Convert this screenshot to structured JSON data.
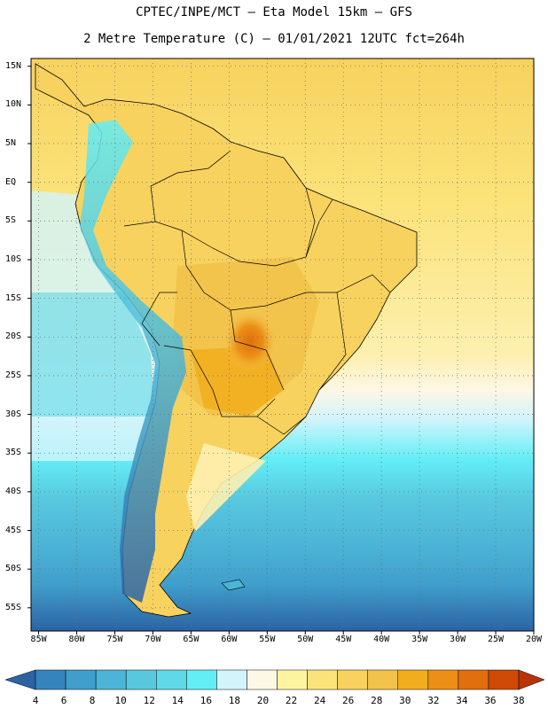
{
  "title_line1": "CPTEC/INPE/MCT –  Eta Model 15km – GFS",
  "title_line2": "2 Metre Temperature (C) – 01/01/2021 12UTC fct=264h",
  "lat_labels": [
    "15N",
    "10N",
    "5N",
    "EQ",
    "5S",
    "10S",
    "15S",
    "20S",
    "25S",
    "30S",
    "35S",
    "40S",
    "45S",
    "50S",
    "55S"
  ],
  "lon_labels": [
    "85W",
    "80W",
    "75W",
    "70W",
    "65W",
    "60W",
    "55W",
    "50W",
    "45W",
    "40W",
    "35W",
    "30W",
    "25W",
    "20W"
  ],
  "colorbar": {
    "labels": [
      "4",
      "6",
      "8",
      "10",
      "12",
      "14",
      "16",
      "18",
      "20",
      "22",
      "24",
      "26",
      "28",
      "30",
      "32",
      "34",
      "36",
      "38"
    ],
    "colors": [
      "#2c63a4",
      "#3584bd",
      "#3f9ecb",
      "#4cb4d6",
      "#58c8df",
      "#5fd9e8",
      "#63eef6",
      "#d2f4fb",
      "#fdf7e6",
      "#fef4a0",
      "#fbe37a",
      "#f7d25e",
      "#f2c24a",
      "#f1ad1c",
      "#eb8f16",
      "#e16f0d",
      "#cf4a06",
      "#b83408"
    ]
  },
  "map": {
    "domain": {
      "lon_min": -86,
      "lon_max": -20,
      "lat_min": -58,
      "lat_max": 16
    },
    "ocean_colors": {
      "north": "#f7d25e",
      "south_deep": "#2c63a4"
    }
  }
}
